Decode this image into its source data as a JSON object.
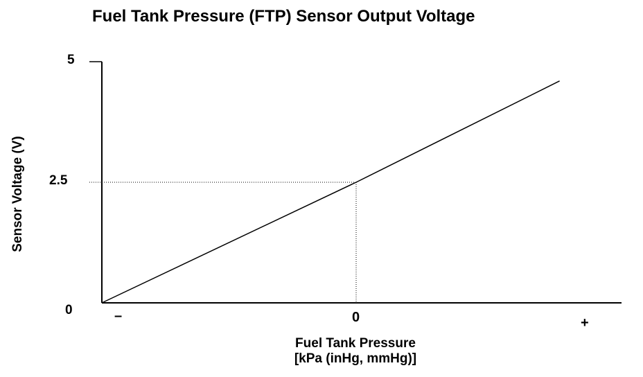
{
  "chart_data": {
    "type": "line",
    "title": "Fuel Tank Pressure (FTP) Sensor Output Voltage",
    "xlabel": "Fuel Tank Pressure",
    "xlabel_units": "[kPa (inHg, mmHg)]",
    "ylabel": "Sensor Voltage (V)",
    "y_ticks": [
      "5",
      "2.5",
      "0"
    ],
    "x_ticks": [
      "–",
      "0",
      "+"
    ],
    "ylim": [
      0,
      5
    ],
    "xlim": [
      -1,
      1.045
    ],
    "grid": false,
    "series": [
      {
        "x": [
          -1,
          0,
          0.8
        ],
        "y": [
          0,
          2.5,
          4.6
        ]
      }
    ],
    "reference": {
      "x": 0,
      "y": 2.5
    }
  }
}
